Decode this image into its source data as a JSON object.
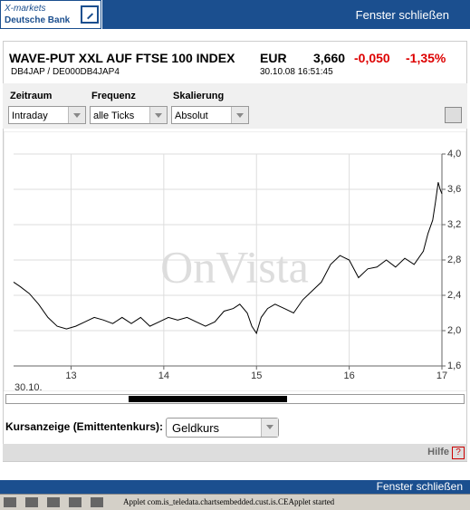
{
  "header": {
    "logo_line1": "X-markets",
    "logo_line2": "Deutsche Bank",
    "close": "Fenster schließen"
  },
  "instrument": {
    "name": "WAVE-PUT XXL AUF FTSE 100 INDEX",
    "currency": "EUR",
    "price": "3,660",
    "change": "-0,050",
    "change_pct": "-1,35%",
    "codes": "DB4JAP / DE000DB4JAP4",
    "timestamp": "30.10.08 16:51:45"
  },
  "controls": [
    {
      "label": "Zeitraum",
      "value": "Intraday"
    },
    {
      "label": "Frequenz",
      "value": "alle Ticks"
    },
    {
      "label": "Skalierung",
      "value": "Absolut"
    }
  ],
  "chart_data": {
    "type": "line",
    "x": [
      12.38,
      12.45,
      12.55,
      12.65,
      12.75,
      12.85,
      12.95,
      13.05,
      13.15,
      13.25,
      13.35,
      13.45,
      13.55,
      13.65,
      13.75,
      13.85,
      13.95,
      14.05,
      14.15,
      14.25,
      14.35,
      14.45,
      14.55,
      14.65,
      14.75,
      14.82,
      14.9,
      14.95,
      15.0,
      15.05,
      15.12,
      15.2,
      15.3,
      15.4,
      15.5,
      15.6,
      15.7,
      15.8,
      15.9,
      16.0,
      16.1,
      16.2,
      16.3,
      16.4,
      16.5,
      16.6,
      16.7,
      16.8,
      16.85,
      16.9,
      16.93,
      16.96,
      16.98,
      17.0
    ],
    "series": [
      {
        "color": "#000000",
        "values": [
          2.55,
          2.5,
          2.42,
          2.3,
          2.15,
          2.05,
          2.02,
          2.05,
          2.1,
          2.15,
          2.12,
          2.08,
          2.15,
          2.08,
          2.15,
          2.05,
          2.1,
          2.15,
          2.12,
          2.15,
          2.1,
          2.05,
          2.1,
          2.22,
          2.25,
          2.3,
          2.2,
          2.05,
          1.97,
          2.15,
          2.25,
          2.3,
          2.25,
          2.2,
          2.35,
          2.45,
          2.55,
          2.75,
          2.85,
          2.8,
          2.6,
          2.7,
          2.72,
          2.8,
          2.72,
          2.82,
          2.75,
          2.9,
          3.1,
          3.25,
          3.45,
          3.68,
          3.6,
          3.55
        ]
      }
    ],
    "xlim": [
      12.38,
      17.0
    ],
    "xticks": [
      13,
      14,
      15,
      16,
      17
    ],
    "ylim": [
      1.6,
      4.0
    ],
    "yticks": [
      {
        "value": 1.6,
        "label": "1,6"
      },
      {
        "value": 2.0,
        "label": "2,0"
      },
      {
        "value": 2.4,
        "label": "2,4"
      },
      {
        "value": 2.8,
        "label": "2,8"
      },
      {
        "value": 3.2,
        "label": "3,2"
      },
      {
        "value": 3.6,
        "label": "3,6"
      },
      {
        "value": 4.0,
        "label": "4,0"
      }
    ],
    "grid": true,
    "watermark": "OnVista",
    "date_label": "30.10."
  },
  "quote_select": {
    "label": "Kursanzeige (Emittentenkurs):",
    "value": "Geldkurs"
  },
  "help": "Hilfe",
  "help_icon": "?",
  "footer_close": "Fenster schließen",
  "status": "Applet com.is_teledata.chartsembedded.cust.is.CEApplet started"
}
